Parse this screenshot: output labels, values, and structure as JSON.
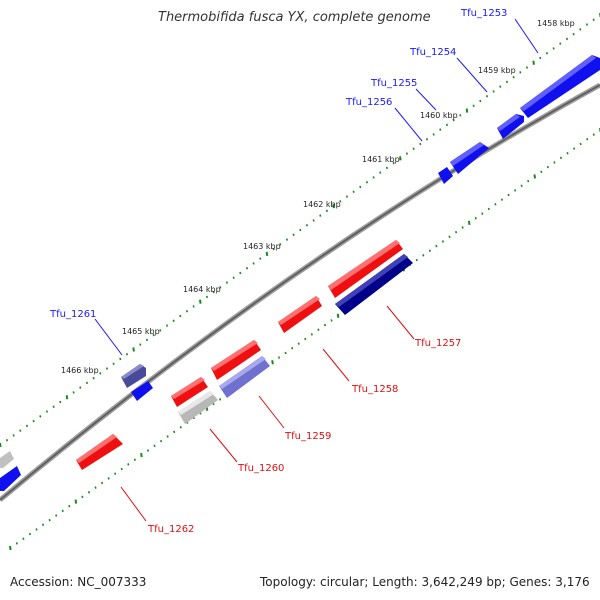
{
  "title": "Thermobifida fusca YX, complete genome",
  "footer": {
    "accession": "Accession: NC_007333",
    "topology": "Topology: circular; Length: 3,642,249 bp; Genes: 3,176"
  },
  "colors": {
    "backbone": "#808080",
    "tick": "#1a8a1a",
    "label_blue": "#1a1aff",
    "label_red": "#e01010"
  },
  "scale_labels": [
    "1458 kbp",
    "1459 kbp",
    "1460 kbp",
    "1461 kbp",
    "1462 kbp",
    "1463 kbp",
    "1464 kbp",
    "1465 kbp",
    "1466 kbp"
  ],
  "genes": [
    {
      "name": "Tfu_1253",
      "strand": "forward",
      "color": "#1010ee"
    },
    {
      "name": "Tfu_1254",
      "strand": "forward",
      "color": "#1010ee"
    },
    {
      "name": "Tfu_1255",
      "strand": "forward",
      "color": "#1010ee"
    },
    {
      "name": "Tfu_1256",
      "strand": "forward",
      "color": "#1010ee"
    },
    {
      "name": "Tfu_1261",
      "strand": "forward",
      "color": "#4a4a9a"
    },
    {
      "name": "Tfu_1257",
      "strand": "reverse",
      "color": "#000088"
    },
    {
      "name": "Tfu_1258",
      "strand": "reverse",
      "color": "#ee1010"
    },
    {
      "name": "Tfu_1259",
      "strand": "reverse",
      "color": "#8080d8"
    },
    {
      "name": "Tfu_1260",
      "strand": "reverse",
      "color": "#c0c0c0"
    },
    {
      "name": "Tfu_1262",
      "strand": "reverse",
      "color": "#ee1010"
    }
  ]
}
